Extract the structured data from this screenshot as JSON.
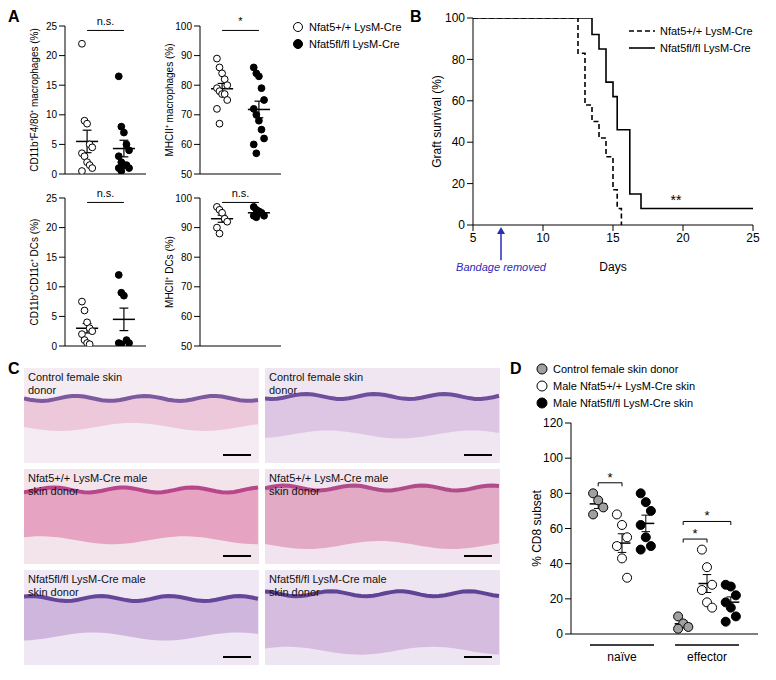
{
  "chart_data": [
    {
      "panel": "A",
      "type": "dot_plot",
      "ylabel": "CD11b⁺F4/80⁺ macrophages (%)",
      "ylim": [
        0,
        25
      ],
      "yticks": [
        0,
        5,
        10,
        15,
        20,
        25
      ],
      "tick_labels": "y",
      "annotation": "n.s.",
      "legend": "right",
      "series": [
        {
          "name": "Nfat5+/+ LysM-Cre",
          "color": "#ffffff",
          "marker": "circle",
          "values": [
            22,
            9,
            8.5,
            5,
            4.5,
            3.5,
            3,
            2,
            1.5,
            1,
            0.5
          ],
          "mean": 5.5,
          "sem": 1.9
        },
        {
          "name": "Nfat5fl/fl LysM-Cre",
          "color": "#000000",
          "marker": "circle",
          "values": [
            16.5,
            8,
            7,
            5,
            4,
            3,
            2,
            1.5,
            1.5,
            1,
            1,
            0.5
          ],
          "mean": 4.3,
          "sem": 1.4
        }
      ]
    },
    {
      "type": "dot_plot",
      "ylabel": "MHCII⁺ macrophages (%)",
      "ylim": [
        50,
        100
      ],
      "yticks": [
        50,
        60,
        70,
        80,
        90,
        100
      ],
      "tick_labels": "y",
      "annotation": "*",
      "series": [
        {
          "name": "Nfat5+/+ LysM-Cre",
          "color": "#ffffff",
          "marker": "circle",
          "values": [
            89,
            86,
            84,
            82,
            80,
            79,
            78,
            77,
            77,
            75,
            72,
            67
          ],
          "mean": 78.8,
          "sem": 1.8
        },
        {
          "name": "Nfat5fl/fl LysM-Cre",
          "color": "#000000",
          "marker": "circle",
          "values": [
            86,
            84,
            83,
            79,
            75,
            72,
            70,
            68,
            65,
            62,
            60,
            57
          ],
          "mean": 71.8,
          "sem": 2.8
        }
      ]
    },
    {
      "type": "dot_plot",
      "ylabel": "CD11b⁺CD11c⁺ DCs (%)",
      "ylim": [
        0,
        25
      ],
      "yticks": [
        0,
        5,
        10,
        15,
        20,
        25
      ],
      "tick_labels": "y",
      "annotation": "n.s.",
      "series": [
        {
          "name": "Nfat5+/+ LysM-Cre",
          "color": "#ffffff",
          "marker": "circle",
          "values": [
            7.5,
            6,
            4,
            3,
            2.5,
            2,
            1,
            0.5,
            0.3
          ],
          "mean": 3.0,
          "sem": 0.8
        },
        {
          "name": "Nfat5fl/fl LysM-Cre",
          "color": "#000000",
          "marker": "circle",
          "values": [
            12,
            9,
            8.5,
            1,
            0.5,
            0.5,
            0.3
          ],
          "mean": 4.5,
          "sem": 1.9
        }
      ]
    },
    {
      "type": "dot_plot",
      "ylabel": "MHCII⁺ DCs (%)",
      "ylim": [
        50,
        100
      ],
      "yticks": [
        50,
        60,
        70,
        80,
        90,
        100
      ],
      "tick_labels": "y",
      "annotation": "n.s.",
      "series": [
        {
          "name": "Nfat5+/+ LysM-Cre",
          "color": "#ffffff",
          "marker": "circle",
          "values": [
            97,
            96,
            95,
            93,
            92,
            90,
            88
          ],
          "mean": 93.0,
          "sem": 1.2
        },
        {
          "name": "Nfat5fl/fl LysM-Cre",
          "color": "#000000",
          "marker": "circle",
          "values": [
            97,
            96,
            95.5,
            95,
            94,
            94,
            93.5
          ],
          "mean": 95.0,
          "sem": 0.5
        }
      ]
    },
    {
      "panel": "B",
      "type": "line",
      "ylabel": "Graft survival (%)",
      "xlabel": "Days",
      "xlim": [
        5,
        25
      ],
      "xticks": [
        5,
        10,
        15,
        20,
        25
      ],
      "ylim": [
        0,
        100
      ],
      "yticks": [
        0,
        20,
        40,
        60,
        80,
        100
      ],
      "legend": "upper right",
      "annotations": [
        {
          "text": "Bandage removed",
          "x": 7,
          "color": "#2b2bb8"
        },
        {
          "text": "**",
          "x": 19.5,
          "y": 12
        }
      ],
      "series": [
        {
          "name": "Nfat5+/+ LysM-Cre",
          "type": "step",
          "color": "#000000",
          "line_style": "dashed",
          "marker": "none",
          "x": [
            5,
            12.5,
            13,
            13.5,
            14,
            14.5,
            15,
            15.3,
            15.6
          ],
          "values": [
            100,
            83,
            58,
            50,
            42,
            33,
            17,
            8,
            0
          ]
        },
        {
          "name": "Nfat5fl/fl LysM-Cre",
          "type": "step",
          "color": "#000000",
          "line_style": "solid",
          "marker": "none",
          "x": [
            5,
            13.5,
            14,
            14.5,
            15,
            15.3,
            16.2,
            17,
            25
          ],
          "values": [
            100,
            92,
            85,
            69,
            62,
            46,
            15,
            8,
            8
          ]
        }
      ]
    },
    {
      "panel": "D",
      "type": "dot_plot",
      "ylabel": "% CD8 subset",
      "categories": [
        "naïve",
        "effector"
      ],
      "ylim": [
        0,
        120
      ],
      "yticks": [
        0,
        20,
        40,
        60,
        80,
        100,
        120
      ],
      "legend": "top",
      "series": [
        {
          "name": "Control female skin donor",
          "color": "#a0a0a0",
          "marker": "circle",
          "values": [
            [
              80,
              76,
              72,
              68
            ],
            [
              10,
              6,
              4,
              3
            ]
          ],
          "mean": [
            74,
            5.8
          ],
          "sem": [
            2.6,
            1.6
          ]
        },
        {
          "name": "Male Nfat5+/+ LysM-Cre skin",
          "color": "#ffffff",
          "marker": "circle",
          "values": [
            [
              68,
              62,
              55,
              50,
              43,
              32
            ],
            [
              48,
              38,
              28,
              25,
              18,
              15
            ]
          ],
          "mean": [
            51.7,
            28.7
          ],
          "sem": [
            5.3,
            5.1
          ]
        },
        {
          "name": "Male Nfat5fl/fl LysM-Cre skin",
          "color": "#000000",
          "marker": "circle",
          "values": [
            [
              80,
              75,
              70,
              62,
              55,
              50,
              48
            ],
            [
              28,
              27,
              22,
              18,
              15,
              10,
              7
            ]
          ],
          "mean": [
            62.9,
            18.1
          ],
          "sem": [
            4.7,
            3.0
          ]
        }
      ],
      "comparisons": [
        {
          "category": "naïve",
          "between": [
            "Control female skin donor",
            "Male Nfat5+/+ LysM-Cre skin"
          ],
          "label": "*"
        },
        {
          "category": "effector",
          "between": [
            "Control female skin donor",
            "Male Nfat5+/+ LysM-Cre skin"
          ],
          "label": "*"
        },
        {
          "category": "effector",
          "between": [
            "Control female skin donor",
            "Male Nfat5fl/fl LysM-Cre skin"
          ],
          "label": "*"
        }
      ]
    }
  ],
  "histology": {
    "panel": "C",
    "images": [
      {
        "label": "Control female skin donor"
      },
      {
        "label": "Control female skin donor"
      },
      {
        "label": "Nfat5+/+ LysM-Cre male skin donor"
      },
      {
        "label": "Nfat5+/+ LysM-Cre male skin donor"
      },
      {
        "label": "Nfat5fl/fl LysM-Cre male skin donor"
      },
      {
        "label": "Nfat5fl/fl LysM-Cre male skin donor"
      }
    ]
  }
}
